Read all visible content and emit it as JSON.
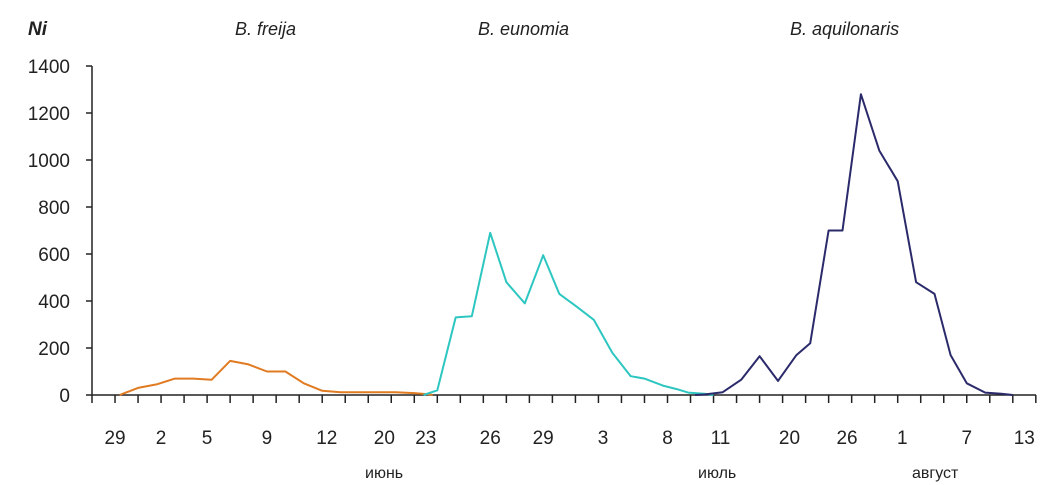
{
  "chart_data": {
    "type": "line",
    "ylabel": "Ni",
    "ylim": [
      0,
      1400
    ],
    "y_ticks": [
      "0",
      "200",
      "400",
      "600",
      "800",
      "1000",
      "1200",
      "1400"
    ],
    "x_tick_labels": [
      "29",
      "2",
      "5",
      "9",
      "12",
      "20",
      "23",
      "26",
      "29",
      "3",
      "8",
      "11",
      "20",
      "26",
      "1",
      "7",
      "13"
    ],
    "month_labels": [
      "июнь",
      "июль",
      "август"
    ],
    "grid": false,
    "series": [
      {
        "name": "B. freija",
        "color": "#e07b22",
        "points": [
          [
            1.2,
            0
          ],
          [
            2,
            30
          ],
          [
            2.8,
            45
          ],
          [
            3.6,
            70
          ],
          [
            4.4,
            70
          ],
          [
            5.2,
            65
          ],
          [
            6,
            145
          ],
          [
            6.8,
            130
          ],
          [
            7.6,
            100
          ],
          [
            8.4,
            100
          ],
          [
            9.2,
            50
          ],
          [
            10,
            18
          ],
          [
            10.8,
            12
          ],
          [
            11.6,
            12
          ],
          [
            12.4,
            12
          ],
          [
            13.2,
            12
          ],
          [
            14,
            8
          ],
          [
            14.6,
            3
          ],
          [
            14.8,
            0
          ]
        ]
      },
      {
        "name": "B. eunomia",
        "color": "#2dc6c0",
        "points": [
          [
            14.4,
            0
          ],
          [
            15,
            20
          ],
          [
            15.8,
            330
          ],
          [
            16.5,
            335
          ],
          [
            17.3,
            690
          ],
          [
            18,
            480
          ],
          [
            18.8,
            390
          ],
          [
            19.6,
            595
          ],
          [
            20.3,
            430
          ],
          [
            21,
            380
          ],
          [
            21.8,
            320
          ],
          [
            22.6,
            180
          ],
          [
            23.4,
            80
          ],
          [
            24,
            70
          ],
          [
            24.8,
            40
          ],
          [
            25.4,
            25
          ],
          [
            25.9,
            10
          ],
          [
            26.6,
            5
          ],
          [
            27,
            0
          ]
        ]
      },
      {
        "name": "B. aquilonaris",
        "color": "#2b2a6b",
        "points": [
          [
            26.2,
            0
          ],
          [
            26.6,
            2
          ],
          [
            27.4,
            12
          ],
          [
            28.2,
            65
          ],
          [
            29,
            165
          ],
          [
            29.8,
            60
          ],
          [
            30.6,
            170
          ],
          [
            31.2,
            220
          ],
          [
            32,
            700
          ],
          [
            32.6,
            700
          ],
          [
            33.4,
            1280
          ],
          [
            34.2,
            1040
          ],
          [
            35,
            910
          ],
          [
            35.8,
            480
          ],
          [
            36.6,
            430
          ],
          [
            37.3,
            170
          ],
          [
            38,
            50
          ],
          [
            38.8,
            10
          ],
          [
            39.5,
            5
          ],
          [
            40,
            0
          ]
        ]
      }
    ]
  }
}
